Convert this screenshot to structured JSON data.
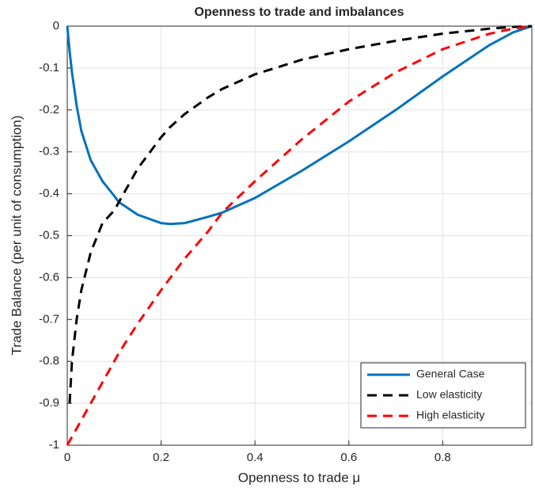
{
  "chart_data": {
    "type": "line",
    "title": "Openness to trade and imbalances",
    "xlabel": "Openness to trade μ",
    "ylabel": "Trade Balance (per unit of consumption)",
    "x": [
      0,
      0.005,
      0.01,
      0.02,
      0.03,
      0.05,
      0.075,
      0.1,
      0.11,
      0.15,
      0.2,
      0.22,
      0.25,
      0.3,
      0.33,
      0.4,
      0.5,
      0.6,
      0.7,
      0.8,
      0.9,
      0.95,
      0.99
    ],
    "series": [
      {
        "name": "General Case",
        "color": "#0072bd",
        "dash": "solid",
        "values": [
          0,
          -0.06,
          -0.11,
          -0.19,
          -0.25,
          -0.32,
          -0.37,
          -0.405,
          -0.42,
          -0.45,
          -0.47,
          -0.472,
          -0.47,
          -0.455,
          -0.445,
          -0.41,
          -0.345,
          -0.275,
          -0.2,
          -0.12,
          -0.045,
          -0.015,
          0
        ]
      },
      {
        "name": "Low elasticity",
        "color": "#000000",
        "dash": "dashed",
        "values": [
          null,
          -0.9,
          -0.8,
          -0.7,
          -0.63,
          -0.54,
          -0.47,
          -0.44,
          -0.42,
          -0.34,
          -0.265,
          -0.24,
          -0.21,
          -0.17,
          -0.15,
          -0.115,
          -0.08,
          -0.055,
          -0.035,
          -0.018,
          -0.006,
          -0.002,
          0
        ]
      },
      {
        "name": "High elasticity",
        "color": "#ff0000",
        "dash": "dashed",
        "values": [
          -1,
          -0.99,
          -0.98,
          -0.96,
          -0.94,
          -0.9,
          -0.85,
          -0.8,
          -0.78,
          -0.71,
          -0.63,
          -0.6,
          -0.555,
          -0.49,
          -0.445,
          -0.37,
          -0.27,
          -0.18,
          -0.11,
          -0.055,
          -0.018,
          -0.006,
          0
        ]
      }
    ],
    "xlim": [
      0,
      0.99
    ],
    "ylim": [
      -1,
      0
    ],
    "xticks": [
      0,
      0.2,
      0.4,
      0.6,
      0.8
    ],
    "yticks": [
      0,
      -0.1,
      -0.2,
      -0.3,
      -0.4,
      -0.5,
      -0.6,
      -0.7,
      -0.8,
      -0.9,
      -1
    ],
    "grid": true,
    "legend": "lower-right"
  }
}
